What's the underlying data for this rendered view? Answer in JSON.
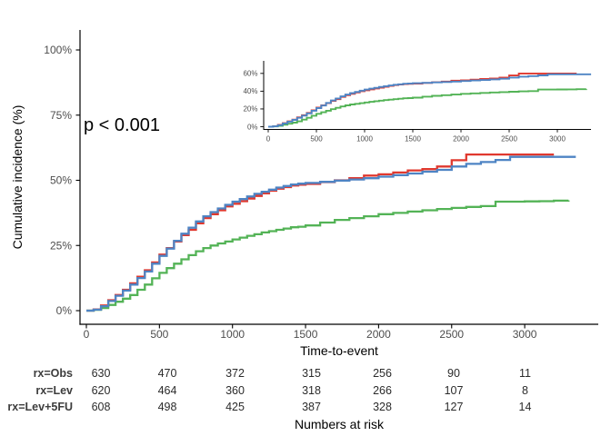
{
  "figure": {
    "p_value": "p < 0.001",
    "y_axis_title": "Cumulative incidence (%)",
    "x_axis_title": "Time-to-event",
    "risk_table_title": "Numbers at risk",
    "background": "#ffffff"
  },
  "palette": {
    "obs": "#E0382E",
    "lev": "#4E84C4",
    "lev5fu": "#53B356",
    "axis_line": "#000000",
    "tick_text": "#4d4d4d"
  },
  "main_axes": {
    "x_tick_values": [
      0,
      500,
      1000,
      1500,
      2000,
      2500,
      3000
    ],
    "x_tick_labels": [
      "0",
      "500",
      "1000",
      "1500",
      "2000",
      "2500",
      "3000"
    ],
    "y_tick_values": [
      0,
      25,
      50,
      75,
      100
    ],
    "y_tick_labels": [
      "0%",
      "25%",
      "50%",
      "75%",
      "100%"
    ]
  },
  "inset_axes": {
    "x_tick_values": [
      0,
      500,
      1000,
      1500,
      2000,
      2500,
      3000
    ],
    "x_tick_labels": [
      "0",
      "500",
      "1000",
      "1500",
      "2000",
      "2500",
      "3000"
    ],
    "y_tick_values": [
      0,
      20,
      40,
      60
    ],
    "y_tick_labels": [
      "0%",
      "20%",
      "40%",
      "60%"
    ]
  },
  "risk_table": {
    "rows": [
      {
        "label": "rx=Obs",
        "values": [
          "630",
          "470",
          "372",
          "315",
          "256",
          "90",
          "11"
        ]
      },
      {
        "label": "rx=Lev",
        "values": [
          "620",
          "464",
          "360",
          "318",
          "266",
          "107",
          "8"
        ]
      },
      {
        "label": "rx=Lev+5FU",
        "values": [
          "608",
          "498",
          "425",
          "387",
          "328",
          "127",
          "14"
        ]
      }
    ]
  },
  "chart_data": {
    "type": "line",
    "subtype": "step-cumulative-incidence",
    "title": "",
    "xlabel": "Time-to-event",
    "ylabel": "Cumulative incidence (%)",
    "annotation": "p < 0.001",
    "grid": false,
    "legend": "none (groups labeled in numbers-at-risk table)",
    "xlim": [
      0,
      3350
    ],
    "main_ylim_pct": [
      0,
      100
    ],
    "inset_ylim_pct": [
      0,
      60
    ],
    "x": [
      0,
      50,
      100,
      150,
      200,
      250,
      300,
      350,
      400,
      450,
      500,
      550,
      600,
      650,
      700,
      750,
      800,
      850,
      900,
      950,
      1000,
      1050,
      1100,
      1150,
      1200,
      1250,
      1300,
      1350,
      1400,
      1450,
      1500,
      1600,
      1700,
      1800,
      1900,
      2000,
      2100,
      2200,
      2300,
      2400,
      2500,
      2600,
      2700,
      2800,
      2900,
      3000,
      3100,
      3200,
      3300,
      3350
    ],
    "series": [
      {
        "name": "rx=Obs",
        "color_key": "obs",
        "values_pct": [
          0,
          0.5,
          2,
          4,
          6,
          8,
          10.5,
          13,
          15.5,
          18.5,
          21.5,
          24,
          26.5,
          29,
          31,
          33.5,
          35.5,
          37,
          38.5,
          40,
          41,
          42,
          43,
          44,
          45,
          46,
          46.8,
          47.4,
          48,
          48.3,
          48.6,
          49.3,
          50,
          50.8,
          51.8,
          52.3,
          53,
          53.8,
          54.3,
          55.3,
          57.7,
          59.9,
          59.9,
          59.9,
          59.9,
          59.9,
          59.9,
          59.9,
          null,
          null
        ]
      },
      {
        "name": "rx=Lev",
        "color_key": "lev",
        "values_pct": [
          0,
          0.4,
          1.7,
          3.7,
          5.7,
          7.7,
          10,
          12.5,
          15,
          18,
          21,
          23.8,
          26.8,
          29.5,
          31.8,
          34.2,
          36.2,
          37.8,
          39.2,
          40.6,
          41.8,
          42.8,
          43.8,
          44.8,
          45.6,
          46.4,
          47.2,
          47.8,
          48.4,
          48.7,
          49,
          49.4,
          49.9,
          50.3,
          50.8,
          51.4,
          52,
          52.6,
          53.3,
          54,
          55.3,
          56.3,
          57,
          57.8,
          59,
          59,
          59,
          59,
          59,
          59
        ]
      },
      {
        "name": "rx=Lev+5FU",
        "color_key": "lev5fu",
        "values_pct": [
          0,
          0.3,
          1,
          2.2,
          3.4,
          4.6,
          6,
          8,
          10,
          12.4,
          14.5,
          16.3,
          18,
          19.7,
          21.3,
          22.8,
          24,
          25,
          25.8,
          26.5,
          27.3,
          28,
          28.7,
          29.3,
          30,
          30.5,
          31,
          31.5,
          32,
          32.2,
          32.7,
          33.8,
          34.8,
          35.5,
          36.2,
          37,
          37.5,
          38,
          38.5,
          39,
          39.4,
          39.8,
          40.1,
          41.8,
          41.8,
          41.9,
          42,
          42.2,
          42.3,
          null
        ]
      }
    ],
    "numbers_at_risk": {
      "times": [
        0,
        500,
        1000,
        1500,
        2000,
        2500,
        3000
      ],
      "rx=Obs": [
        630,
        470,
        372,
        315,
        256,
        90,
        11
      ],
      "rx=Lev": [
        620,
        464,
        360,
        318,
        266,
        107,
        8
      ],
      "rx=Lev+5FU": [
        608,
        498,
        425,
        387,
        328,
        127,
        14
      ]
    }
  }
}
